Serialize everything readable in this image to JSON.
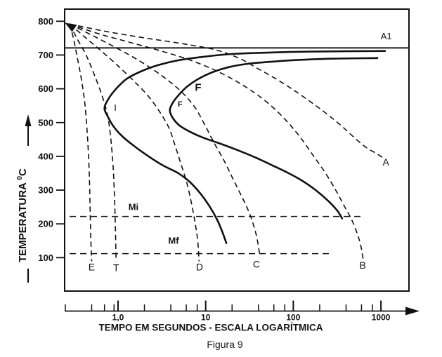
{
  "figure": {
    "caption": "Figura 9"
  },
  "chart_data": {
    "type": "line",
    "title": "",
    "x_axis": {
      "label": "TEMPO EM SEGUNDOS - ESCALA LOGARÍTMICA",
      "scale": "log",
      "unit": "s",
      "range_s": [
        0.25,
        2000
      ],
      "major_ticks": [
        1,
        10,
        100,
        1000
      ],
      "major_tick_labels": [
        "1,0",
        "10",
        "100",
        "1000"
      ],
      "minor_ticks": [
        0.25,
        0.5,
        0.7,
        0.9,
        2,
        4,
        6,
        8,
        20,
        40,
        60,
        80,
        200,
        400,
        600,
        800
      ]
    },
    "y_axis": {
      "label": "TEMPERATURA",
      "label_superscript": "0",
      "label_unit": "C",
      "scale": "linear",
      "range_c": [
        0,
        836
      ],
      "ticks": [
        100,
        200,
        300,
        400,
        500,
        600,
        700,
        800
      ]
    },
    "reference_lines": [
      {
        "label": "A1",
        "temp_c": 721,
        "style": "solid",
        "span_s": [
          0.246,
          2089
        ],
        "label_at": [
          1150,
          747
        ]
      },
      {
        "label": "Mi",
        "temp_c": 222,
        "style": "dashed",
        "span_s": [
          0.28,
          583
        ],
        "label_at": [
          1.5,
          241
        ]
      },
      {
        "label": "Mf",
        "temp_c": 112,
        "style": "dashed",
        "span_s": [
          0.28,
          255
        ],
        "label_at": [
          4.3,
          141
        ]
      }
    ],
    "transformation_curves": [
      {
        "name": "I",
        "labels": [
          {
            "text": "I",
            "at": [
              0.93,
              535
            ],
            "size": 13,
            "bold": false
          }
        ],
        "points": [
          [
            1114,
            712
          ],
          [
            152,
            710
          ],
          [
            50,
            707
          ],
          [
            19.9,
            703
          ],
          [
            9.5,
            695
          ],
          [
            5.0,
            685
          ],
          [
            2.86,
            670
          ],
          [
            1.81,
            651
          ],
          [
            1.25,
            629
          ],
          [
            0.95,
            600
          ],
          [
            0.79,
            573
          ],
          [
            0.7,
            544
          ],
          [
            0.76,
            519
          ],
          [
            0.88,
            490
          ],
          [
            1.1,
            461
          ],
          [
            1.5,
            432
          ],
          [
            2.17,
            402
          ],
          [
            3.26,
            373
          ],
          [
            4.8,
            351
          ],
          [
            6.6,
            324
          ],
          [
            8.7,
            290
          ],
          [
            11.0,
            253
          ],
          [
            13.3,
            216
          ],
          [
            15.4,
            178
          ],
          [
            17.2,
            143
          ]
        ]
      },
      {
        "name": "F",
        "labels": [
          {
            "text": "F",
            "at": [
              8.2,
              594
            ],
            "size": 15,
            "bold": true
          },
          {
            "text": "F",
            "at": [
              5.1,
              547
            ],
            "size": 11,
            "bold": true
          }
        ],
        "points": [
          [
            910,
            691
          ],
          [
            264,
            689
          ],
          [
            105,
            685
          ],
          [
            55,
            680
          ],
          [
            30,
            674
          ],
          [
            18.2,
            664
          ],
          [
            11.9,
            649
          ],
          [
            8.2,
            629
          ],
          [
            6.1,
            606
          ],
          [
            4.9,
            581
          ],
          [
            4.2,
            558
          ],
          [
            3.9,
            535
          ],
          [
            4.3,
            510
          ],
          [
            5.1,
            490
          ],
          [
            6.6,
            473
          ],
          [
            9.2,
            456
          ],
          [
            13.8,
            440
          ],
          [
            21.8,
            421
          ],
          [
            36,
            398
          ],
          [
            58,
            373
          ],
          [
            87,
            351
          ],
          [
            126,
            328
          ],
          [
            182,
            299
          ],
          [
            255,
            266
          ],
          [
            318,
            239
          ],
          [
            361,
            216
          ]
        ]
      }
    ],
    "cooling_curves": [
      {
        "name": "E",
        "label": {
          "text": "E",
          "at": [
            0.5,
            62
          ]
        },
        "points": [
          [
            0.28,
            792
          ],
          [
            0.31,
            749
          ],
          [
            0.34,
            697
          ],
          [
            0.38,
            631
          ],
          [
            0.42,
            552
          ],
          [
            0.45,
            448
          ],
          [
            0.47,
            344
          ],
          [
            0.48,
            241
          ],
          [
            0.49,
            147
          ],
          [
            0.5,
            89
          ]
        ]
      },
      {
        "name": "T",
        "label": {
          "text": "T",
          "at": [
            0.95,
            60
          ]
        },
        "points": [
          [
            0.28,
            792
          ],
          [
            0.34,
            749
          ],
          [
            0.43,
            701
          ],
          [
            0.53,
            645
          ],
          [
            0.65,
            583
          ],
          [
            0.76,
            521
          ],
          [
            0.83,
            448
          ],
          [
            0.88,
            365
          ],
          [
            0.91,
            282
          ],
          [
            0.93,
            199
          ],
          [
            0.95,
            89
          ]
        ]
      },
      {
        "name": "D",
        "label": {
          "text": "D",
          "at": [
            8.5,
            62
          ]
        },
        "points": [
          [
            0.28,
            792
          ],
          [
            0.41,
            755
          ],
          [
            0.63,
            714
          ],
          [
            0.98,
            670
          ],
          [
            1.5,
            624
          ],
          [
            2.2,
            579
          ],
          [
            3.0,
            531
          ],
          [
            3.8,
            485
          ],
          [
            4.4,
            438
          ],
          [
            5.1,
            386
          ],
          [
            6.0,
            328
          ],
          [
            6.8,
            268
          ],
          [
            7.5,
            210
          ],
          [
            8.1,
            151
          ],
          [
            8.4,
            89
          ]
        ]
      },
      {
        "name": "C",
        "label": {
          "text": "C",
          "at": [
            38,
            71
          ]
        },
        "points": [
          [
            0.28,
            792
          ],
          [
            0.5,
            759
          ],
          [
            0.91,
            724
          ],
          [
            1.7,
            685
          ],
          [
            3.0,
            643
          ],
          [
            5.0,
            597
          ],
          [
            7.4,
            548
          ],
          [
            9.9,
            490
          ],
          [
            12.6,
            438
          ],
          [
            16.0,
            390
          ],
          [
            19.9,
            340
          ],
          [
            24.8,
            290
          ],
          [
            30.5,
            241
          ],
          [
            35.3,
            195
          ],
          [
            38.7,
            154
          ],
          [
            41.7,
            102
          ]
        ]
      },
      {
        "name": "B",
        "label": {
          "text": "B",
          "at": [
            620,
            68
          ]
        },
        "points": [
          [
            0.28,
            792
          ],
          [
            0.6,
            763
          ],
          [
            1.3,
            739
          ],
          [
            2.9,
            714
          ],
          [
            6.0,
            689
          ],
          [
            12.1,
            658
          ],
          [
            21.8,
            624
          ],
          [
            36.6,
            587
          ],
          [
            58,
            546
          ],
          [
            87,
            500
          ],
          [
            122,
            454
          ],
          [
            169,
            402
          ],
          [
            232,
            351
          ],
          [
            306,
            299
          ],
          [
            389,
            249
          ],
          [
            468,
            210
          ],
          [
            542,
            168
          ],
          [
            594,
            131
          ],
          [
            628,
            93
          ]
        ]
      },
      {
        "name": "A",
        "label": {
          "text": "A",
          "at": [
            1140,
            373
          ]
        },
        "points": [
          [
            0.28,
            792
          ],
          [
            0.72,
            770
          ],
          [
            1.98,
            751
          ],
          [
            5.3,
            734
          ],
          [
            12.6,
            716
          ],
          [
            23.9,
            691
          ],
          [
            38,
            662
          ],
          [
            60,
            633
          ],
          [
            96,
            600
          ],
          [
            152,
            564
          ],
          [
            232,
            529
          ],
          [
            348,
            492
          ],
          [
            504,
            454
          ],
          [
            690,
            425
          ],
          [
            910,
            407
          ],
          [
            1074,
            394
          ]
        ]
      }
    ]
  }
}
